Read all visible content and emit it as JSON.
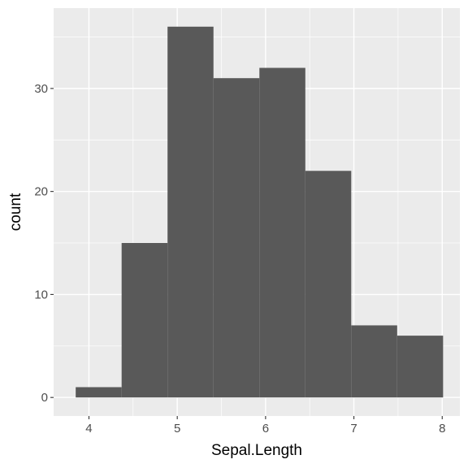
{
  "chart_data": {
    "type": "bar",
    "title": "",
    "xlabel": "Sepal.Length",
    "ylabel": "count",
    "bins": [
      {
        "x_start": 3.85,
        "x_end": 4.37,
        "count": 1
      },
      {
        "x_start": 4.37,
        "x_end": 4.89,
        "count": 15
      },
      {
        "x_start": 4.89,
        "x_end": 5.41,
        "count": 36
      },
      {
        "x_start": 5.41,
        "x_end": 5.93,
        "count": 31
      },
      {
        "x_start": 5.93,
        "x_end": 6.45,
        "count": 32
      },
      {
        "x_start": 6.45,
        "x_end": 6.97,
        "count": 22
      },
      {
        "x_start": 6.97,
        "x_end": 7.49,
        "count": 7
      },
      {
        "x_start": 7.49,
        "x_end": 8.01,
        "count": 6
      }
    ],
    "xlim": [
      3.6,
      8.2
    ],
    "ylim": [
      -1.8,
      37.8
    ],
    "x_ticks": [
      4,
      5,
      6,
      7,
      8
    ],
    "x_tick_labels": [
      "4",
      "5",
      "6",
      "7",
      "8"
    ],
    "y_ticks": [
      0,
      10,
      20,
      30
    ],
    "y_tick_labels": [
      "0",
      "10",
      "20",
      "30"
    ],
    "grid": true,
    "colors": {
      "panel_background": "#ebebeb",
      "grid_major": "#ffffff",
      "bar_fill": "#595959",
      "tick_text": "#4d4d4d",
      "axis_title_text": "#000000",
      "tick_mark": "#333333"
    }
  }
}
